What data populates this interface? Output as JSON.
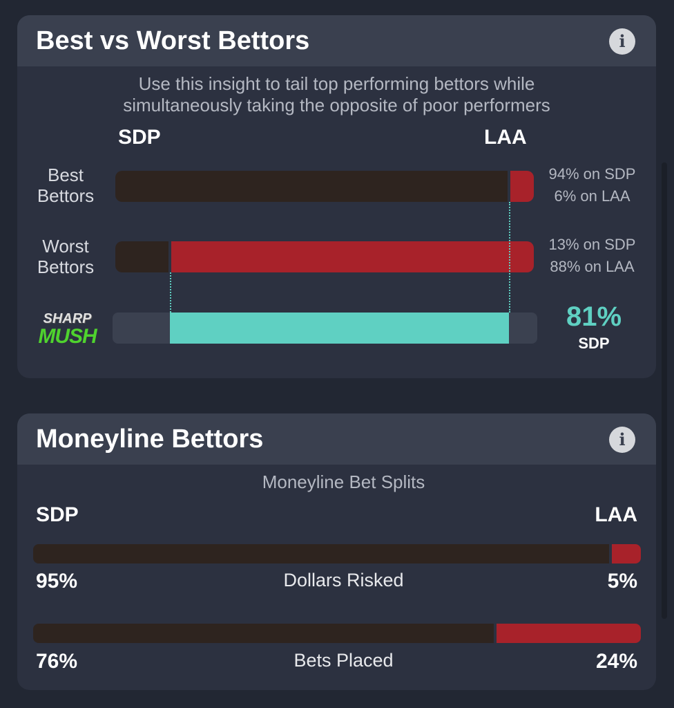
{
  "best_vs_worst": {
    "title": "Best vs Worst Bettors",
    "info_icon": "info-icon",
    "subtitle_line1": "Use this insight to tail top performing bettors while",
    "subtitle_line2": "simultaneously taking the opposite of poor performers",
    "team_left": "SDP",
    "team_right": "LAA",
    "rows": [
      {
        "label1": "Best",
        "label2": "Bettors",
        "left_pct": 94,
        "text1": "94% on SDP",
        "text2": "6% on LAA"
      },
      {
        "label1": "Worst",
        "label2": "Bettors",
        "left_pct": 13,
        "text1": "13% on SDP",
        "text2": "88% on LAA"
      }
    ],
    "logo_text1": "SHARP",
    "logo_text2": "MUSH",
    "sharp_value": "81%",
    "sharp_team": "SDP",
    "colors": {
      "left": "#2e241f",
      "right": "#a8222a",
      "accent": "#5fd0c2",
      "empty": "#3b4150"
    }
  },
  "moneyline": {
    "title": "Moneyline Bettors",
    "info_icon": "info-icon",
    "subtitle": "Moneyline Bet Splits",
    "team_left": "SDP",
    "team_right": "LAA",
    "rows": [
      {
        "label": "Dollars Risked",
        "left_pct": 95,
        "left": "95%",
        "right": "5%"
      },
      {
        "label": "Bets Placed",
        "left_pct": 76,
        "left": "76%",
        "right": "24%"
      }
    ]
  }
}
